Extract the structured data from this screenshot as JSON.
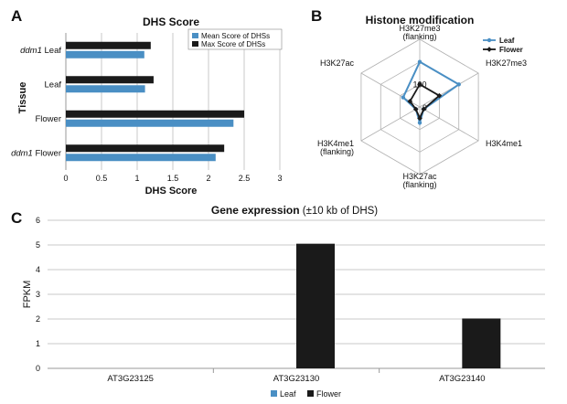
{
  "panels": {
    "a": "A",
    "b": "B",
    "c": "C"
  },
  "chart_data": [
    {
      "type": "bar",
      "orientation": "horizontal",
      "title": "DHS Score",
      "xlabel": "DHS Score",
      "ylabel": "Tissue",
      "categories": [
        {
          "italic": "ddm1",
          "rest": " Leaf"
        },
        {
          "italic": "",
          "rest": "Leaf"
        },
        {
          "italic": "",
          "rest": "Flower"
        },
        {
          "italic": "ddm1",
          "rest": " Flower"
        }
      ],
      "xticks": [
        "0",
        "0.5",
        "1",
        "1.5",
        "2",
        "2.5",
        "3"
      ],
      "xlim": [
        0,
        3
      ],
      "series": [
        {
          "name": "Mean Score of DHSs",
          "color": "#4a8fc4",
          "values": [
            1.1,
            1.11,
            2.35,
            2.1
          ]
        },
        {
          "name": "Max Score of DHSs",
          "color": "#1a1a1a",
          "values": [
            1.19,
            1.23,
            2.5,
            2.22
          ]
        }
      ],
      "legend": "top-right",
      "grid": "vertical"
    },
    {
      "type": "radar",
      "title": "Histone modification",
      "axes": [
        "H3K27me3 (flanking)",
        "H3K27me3",
        "H3K4me1",
        "H3K27ac (flanking)",
        "H3K4me1 (flanking)",
        "H3K27ac"
      ],
      "axis_labels": [
        [
          "H3K27me3",
          "(flanking)"
        ],
        [
          "H3K27me3"
        ],
        [
          "H3K4me1"
        ],
        [
          "H3K27ac",
          "(flanking)"
        ],
        [
          "H3K4me1",
          "(flanking)"
        ],
        [
          "H3K27ac"
        ]
      ],
      "ring_labels": [
        "0",
        "100"
      ],
      "max": 300,
      "series": [
        {
          "name": "Leaf",
          "color": "#4a8fc4",
          "values": [
            200,
            200,
            20,
            70,
            20,
            85
          ]
        },
        {
          "name": "Flower",
          "color": "#1a1a1a",
          "values": [
            100,
            100,
            20,
            50,
            20,
            50
          ]
        }
      ],
      "legend": "top-right"
    },
    {
      "type": "bar",
      "title": "Gene expression",
      "title_suffix": " (±10 kb of DHS)",
      "ylabel": "FPKM",
      "categories": [
        "AT3G23125",
        "AT3G23130",
        "AT3G23140"
      ],
      "yticks": [
        "0",
        "1",
        "2",
        "3",
        "4",
        "5",
        "6"
      ],
      "ylim": [
        0,
        6
      ],
      "series": [
        {
          "name": "Leaf",
          "color": "#4a8fc4",
          "values": [
            0,
            0,
            0
          ]
        },
        {
          "name": "Flower",
          "color": "#1a1a1a",
          "values": [
            0,
            5.05,
            2.02
          ]
        }
      ],
      "legend": "bottom",
      "grid": "horizontal"
    }
  ]
}
